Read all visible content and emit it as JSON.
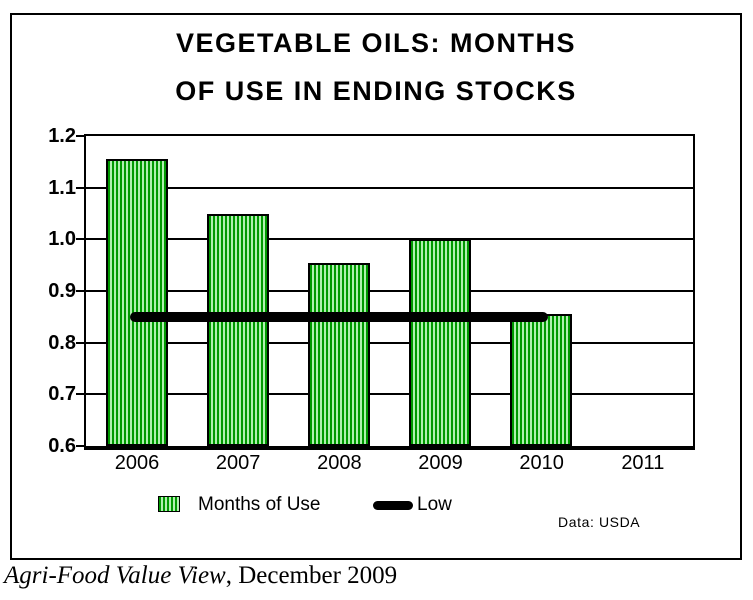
{
  "title": {
    "line1": "VEGETABLE OILS: MONTHS",
    "line2": "OF USE IN ENDING STOCKS"
  },
  "chart_data": {
    "type": "bar",
    "categories": [
      "2006",
      "2007",
      "2008",
      "2009",
      "2010",
      "2011"
    ],
    "series": [
      {
        "name": "Months of Use",
        "type": "bar",
        "values": [
          1.155,
          1.05,
          0.955,
          1.0,
          0.855,
          null
        ]
      },
      {
        "name": "Low",
        "type": "line",
        "value": 0.85,
        "span_categories": [
          "2006",
          "2010"
        ]
      }
    ],
    "ylim": [
      0.6,
      1.2
    ],
    "ytick_step": 0.1,
    "ytick_labels": [
      "1.2",
      "1.1",
      "1.0",
      "0.9",
      "0.8",
      "0.7",
      "0.6"
    ],
    "grid": true,
    "legend_position": "bottom"
  },
  "source_note": "Data: USDA",
  "caption": {
    "italic_part": "Agri-Food Value View",
    "plain_part": ", December 2009"
  },
  "colors": {
    "bar_stripe_dark": "#009900",
    "bar_stripe_light": "#B0F0B0",
    "bar_border": "#000000",
    "low_line": "#000000",
    "grid": "#000000",
    "background": "#FFFFFF"
  }
}
